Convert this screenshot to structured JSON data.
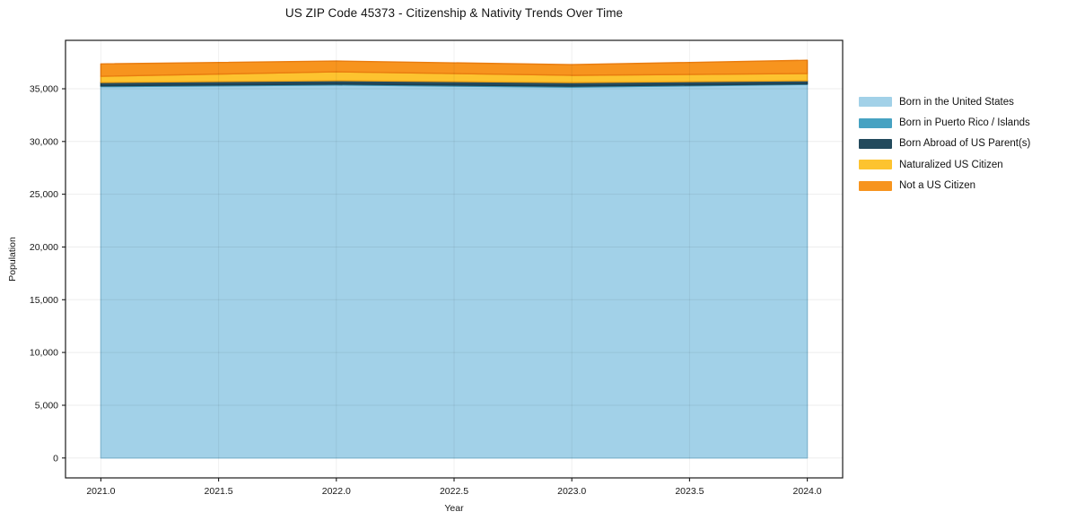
{
  "title": "US ZIP Code 45373 - Citizenship & Nativity Trends Over Time",
  "chart_data": {
    "type": "area",
    "stacked": true,
    "title": "US ZIP Code 45373 - Citizenship & Nativity Trends Over Time",
    "xlabel": "Year",
    "ylabel": "Population",
    "x": [
      2021,
      2022,
      2023,
      2024
    ],
    "series": [
      {
        "name": "Born in the United States",
        "color": "#a2d1e8",
        "edge_color": "#8cc2dc",
        "values": [
          35200,
          35350,
          35150,
          35400
        ]
      },
      {
        "name": "Born in Puerto Rico / Islands",
        "color": "#46a2c2",
        "edge_color": "#3a90ae",
        "values": [
          80,
          90,
          90,
          60
        ]
      },
      {
        "name": "Born Abroad of US Parent(s)",
        "color": "#234a5d",
        "edge_color": "#1b3c4c",
        "values": [
          320,
          330,
          350,
          300
        ]
      },
      {
        "name": "Naturalized US Citizen",
        "color": "#fdc32f",
        "edge_color": "#f2a517",
        "values": [
          580,
          830,
          680,
          680
        ]
      },
      {
        "name": "Not a US Citizen",
        "color": "#f7941e",
        "edge_color": "#e97c0f",
        "values": [
          1170,
          1020,
          1010,
          1260
        ]
      }
    ],
    "x_tick_values": [
      2021.0,
      2021.5,
      2022.0,
      2022.5,
      2023.0,
      2023.5,
      2024.0
    ],
    "x_tick_labels": [
      "2021.0",
      "2021.5",
      "2022.0",
      "2022.5",
      "2023.0",
      "2023.5",
      "2024.0"
    ],
    "y_tick_values": [
      0,
      5000,
      10000,
      15000,
      20000,
      25000,
      30000,
      35000
    ],
    "y_tick_labels": [
      "0",
      "5,000",
      "10,000",
      "15,000",
      "20,000",
      "25,000",
      "30,000",
      "35,000"
    ],
    "xlim": [
      2020.85,
      2024.15
    ],
    "ylim": [
      -1885,
      39585
    ],
    "grid": true,
    "legend_position": "right-outside"
  }
}
